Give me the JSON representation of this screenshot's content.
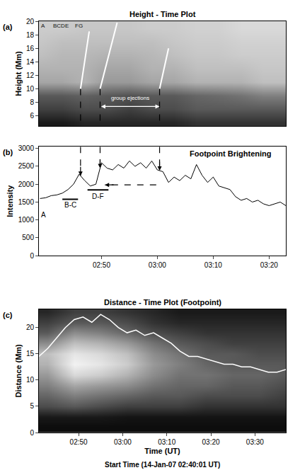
{
  "chart_data": [
    {
      "type": "heatmap",
      "title": "Height - Time Plot",
      "letter": "(a)",
      "ylabel": "Height (Mm)",
      "xlim": [
        -1.2,
        43
      ],
      "ylim": [
        4.5,
        20
      ],
      "yticks": [
        6,
        8,
        10,
        12,
        14,
        16,
        18,
        20
      ],
      "tick_labels": "y",
      "zlim": [
        0,
        100
      ],
      "cells": {
        "x": [
          -1,
          3,
          7,
          11,
          15,
          19,
          23,
          27,
          31,
          35,
          39,
          43
        ],
        "y": [
          5,
          7,
          9,
          11,
          13,
          15,
          17,
          19
        ],
        "z": [
          [
            10,
            10,
            15,
            15,
            15,
            15,
            15,
            20,
            20,
            20,
            20,
            20
          ],
          [
            25,
            25,
            30,
            30,
            25,
            30,
            30,
            35,
            35,
            35,
            35,
            35
          ],
          [
            35,
            35,
            38,
            35,
            32,
            35,
            35,
            40,
            42,
            45,
            50,
            50
          ],
          [
            65,
            65,
            70,
            60,
            60,
            65,
            65,
            70,
            70,
            70,
            75,
            75
          ],
          [
            70,
            70,
            70,
            65,
            65,
            70,
            70,
            75,
            75,
            75,
            78,
            78
          ],
          [
            75,
            72,
            72,
            70,
            70,
            72,
            75,
            78,
            78,
            80,
            80,
            80
          ],
          [
            78,
            75,
            75,
            75,
            75,
            75,
            78,
            80,
            80,
            82,
            82,
            82
          ],
          [
            80,
            80,
            78,
            78,
            78,
            80,
            80,
            82,
            82,
            85,
            85,
            85
          ]
        ]
      },
      "lines": [
        {
          "x": [
            6.25,
            7.8
          ],
          "y": [
            10,
            18.5
          ],
          "color": "#ffffff"
        },
        {
          "x": [
            9.75,
            12.8
          ],
          "y": [
            10,
            19.8
          ],
          "color": "#ffffff"
        },
        {
          "x": [
            20.4,
            22
          ],
          "y": [
            10,
            16
          ],
          "color": "#ffffff"
        }
      ],
      "annotations": [
        {
          "text": "A",
          "x": -0.4,
          "y": 19.3
        },
        {
          "text": "BCDE",
          "x": 2.75,
          "y": 19.3
        },
        {
          "text": "FG",
          "x": 5.9,
          "y": 19.3
        }
      ],
      "group": {
        "text": "group ejections",
        "x": 15.1,
        "y": 8.6,
        "arrow_x": [
          9.75,
          20.4
        ],
        "arrow_y": 7.4
      }
    },
    {
      "type": "line",
      "letter": "(b)",
      "ylabel": "Intensity",
      "color": "#000000",
      "xlim": [
        -1.2,
        43
      ],
      "ylim": [
        0,
        3050
      ],
      "yticks": [
        0,
        500,
        1000,
        1500,
        2000,
        2500,
        3000
      ],
      "xticks": [
        {
          "value": 10,
          "label": "02:50"
        },
        {
          "value": 20,
          "label": "03:00"
        },
        {
          "value": 30,
          "label": "03:10"
        },
        {
          "value": 40,
          "label": "03:20"
        }
      ],
      "x": [
        -1,
        0,
        1,
        2,
        3,
        4,
        5,
        6,
        7,
        8,
        9,
        10,
        11,
        12,
        13,
        14,
        15,
        16,
        17,
        18,
        19,
        20,
        21,
        22,
        23,
        24,
        25,
        26,
        27,
        28,
        29,
        30,
        31,
        32,
        33,
        34,
        35,
        36,
        37,
        38,
        39,
        40,
        41,
        42,
        43
      ],
      "values": [
        1600,
        1620,
        1680,
        1700,
        1750,
        1850,
        2000,
        2280,
        2100,
        1950,
        2000,
        2600,
        2450,
        2400,
        2550,
        2450,
        2650,
        2500,
        2600,
        2450,
        2650,
        2400,
        2350,
        2050,
        2200,
        2100,
        2250,
        2150,
        2550,
        2250,
        2050,
        2200,
        1950,
        1900,
        1850,
        1650,
        1550,
        1600,
        1500,
        1550,
        1450,
        1400,
        1450,
        1500,
        1400
      ],
      "annotations": [
        {
          "text": "A",
          "x": -0.4,
          "y": 1150
        },
        {
          "text": "B-C",
          "x": 4.4,
          "y": 1420
        },
        {
          "text": "D-F",
          "x": 9.4,
          "y": 1650
        },
        {
          "text": "Footpoint Brightening",
          "x": 33,
          "y": 2850
        }
      ],
      "bars": [
        {
          "x": [
            3,
            5.8
          ],
          "y": 1580
        },
        {
          "x": [
            7.5,
            11.25
          ],
          "y": 1840
        }
      ],
      "lag_arrow": {
        "x": [
          19.8,
          10.6
        ],
        "y": 1980
      }
    },
    {
      "type": "heatmap",
      "title": "Distance - Time Plot (Footpoint)",
      "letter": "(c)",
      "xlabel": "Time (UT)",
      "ylabel": "Distance (Mm)",
      "caption": "Start Time (14-Jan-07 02:40:01 UT)",
      "xlim": [
        1,
        57
      ],
      "ylim": [
        0,
        23.5
      ],
      "yticks": [
        0,
        5,
        10,
        15,
        20
      ],
      "xticks": [
        {
          "value": 10,
          "label": "02:50"
        },
        {
          "value": 20,
          "label": "03:00"
        },
        {
          "value": 30,
          "label": "03:10"
        },
        {
          "value": 40,
          "label": "03:20"
        },
        {
          "value": 50,
          "label": "03:30"
        }
      ],
      "zlim": [
        0,
        100
      ],
      "cells": {
        "x": [
          3,
          9,
          15,
          21,
          27,
          33,
          39,
          45,
          51,
          57
        ],
        "y": [
          1,
          3,
          5,
          7,
          9,
          11,
          13,
          15,
          17,
          19,
          21,
          23
        ],
        "z": [
          [
            5,
            5,
            5,
            5,
            5,
            5,
            5,
            5,
            5,
            5
          ],
          [
            10,
            10,
            10,
            8,
            8,
            8,
            8,
            8,
            8,
            8
          ],
          [
            30,
            35,
            30,
            25,
            25,
            25,
            20,
            20,
            20,
            20
          ],
          [
            40,
            50,
            45,
            40,
            35,
            35,
            30,
            30,
            30,
            25
          ],
          [
            50,
            65,
            60,
            55,
            45,
            40,
            40,
            35,
            35,
            30
          ],
          [
            60,
            85,
            80,
            70,
            55,
            45,
            45,
            40,
            40,
            35
          ],
          [
            70,
            95,
            90,
            80,
            60,
            50,
            40,
            35,
            35,
            35
          ],
          [
            75,
            90,
            85,
            75,
            55,
            45,
            35,
            35,
            30,
            30
          ],
          [
            55,
            75,
            70,
            60,
            45,
            35,
            30,
            25,
            25,
            25
          ],
          [
            35,
            55,
            50,
            40,
            30,
            25,
            20,
            20,
            20,
            20
          ],
          [
            25,
            35,
            35,
            30,
            20,
            15,
            15,
            15,
            15,
            15
          ],
          [
            15,
            25,
            25,
            20,
            15,
            10,
            10,
            10,
            10,
            10
          ]
        ]
      },
      "series": [
        {
          "color": "#ffffff",
          "x": [
            1,
            3,
            5,
            7,
            9,
            11,
            13,
            15,
            17,
            19,
            21,
            23,
            25,
            27,
            29,
            31,
            33,
            35,
            37,
            39,
            41,
            43,
            45,
            47,
            49,
            51,
            53,
            55,
            57
          ],
          "values": [
            14.5,
            16,
            18,
            20,
            21.5,
            22,
            21,
            22.5,
            21.5,
            20,
            19,
            19.5,
            18.5,
            19,
            18,
            17,
            15.5,
            14.5,
            14.5,
            14,
            13.5,
            13,
            13,
            12.5,
            12.5,
            12,
            11.5,
            11.5,
            12
          ]
        }
      ]
    }
  ]
}
